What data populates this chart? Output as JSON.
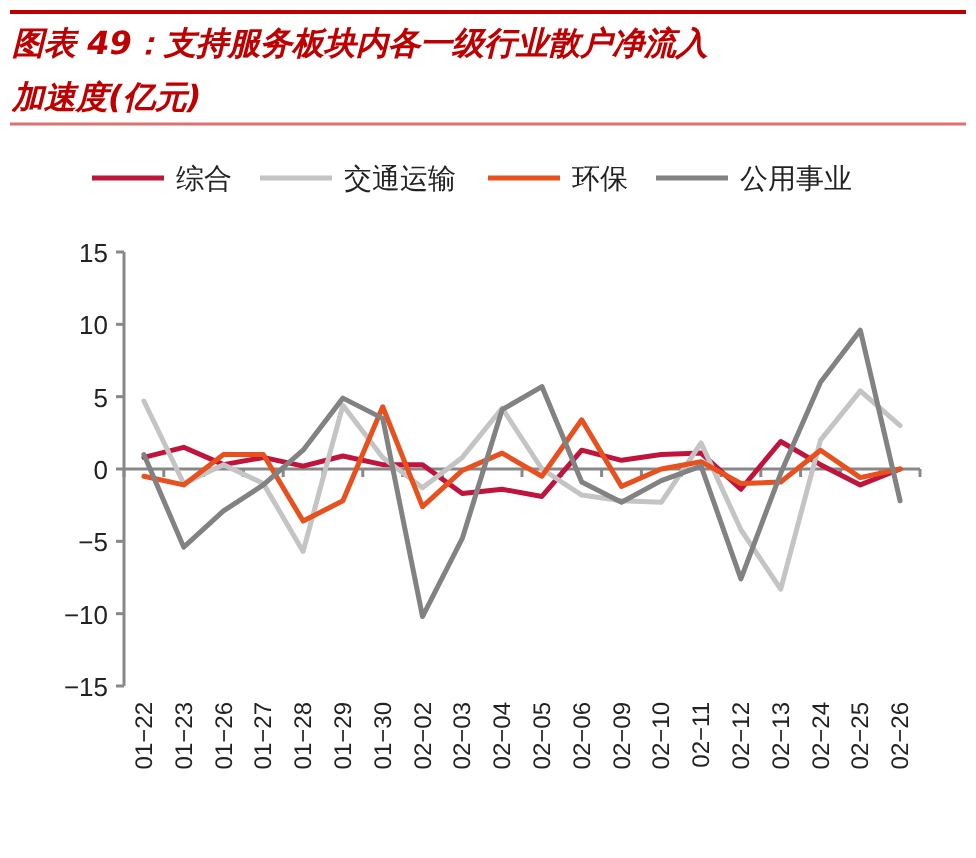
{
  "chart_data": {
    "type": "line",
    "title": "图表 49：支持服务板块内各一级行业散户净流入加速度(亿元)",
    "categories": [
      "01−22",
      "01−23",
      "01−26",
      "01−27",
      "01−28",
      "01−29",
      "01−30",
      "02−02",
      "02−03",
      "02−04",
      "02−05",
      "02−06",
      "02−09",
      "02−10",
      "02−11",
      "02−12",
      "02−13",
      "02−24",
      "02−25",
      "02−26"
    ],
    "ref_lines": [
      {
        "axis": "y",
        "value": 0,
        "color": "#888888"
      }
    ],
    "series": [
      {
        "name": "综合",
        "color": "#c0143c",
        "values": [
          0.8,
          1.5,
          0.3,
          0.8,
          0.2,
          0.9,
          0.3,
          0.3,
          -1.7,
          -1.4,
          -1.9,
          1.3,
          0.6,
          1.0,
          1.1,
          -1.4,
          1.9,
          0.3,
          -1.1,
          0.0
        ]
      },
      {
        "name": "交通运输",
        "color": "#c4c4c4",
        "values": [
          4.7,
          -1.0,
          0.3,
          -1.0,
          -5.7,
          4.4,
          0.8,
          -1.3,
          0.8,
          4.2,
          0.0,
          -1.8,
          -2.2,
          -2.3,
          1.8,
          -4.2,
          -8.3,
          2.0,
          5.4,
          3.0
        ]
      },
      {
        "name": "环保",
        "color": "#e8501e",
        "values": [
          -0.5,
          -1.1,
          1.0,
          1.0,
          -3.6,
          -2.2,
          4.3,
          -2.6,
          -0.1,
          1.1,
          -0.5,
          3.4,
          -1.2,
          0.0,
          0.5,
          -1.0,
          -0.9,
          1.3,
          -0.6,
          0.0
        ]
      },
      {
        "name": "公用事业",
        "color": "#828282",
        "values": [
          1.0,
          -5.4,
          -2.9,
          -1.1,
          1.3,
          4.9,
          3.5,
          -10.2,
          -4.8,
          4.1,
          5.7,
          -0.9,
          -2.3,
          -0.8,
          0.2,
          -7.6,
          -0.3,
          6.0,
          9.6,
          -2.2
        ]
      }
    ],
    "ylim": [
      -15,
      15
    ],
    "yticks": [
      -15,
      -10,
      -5,
      0,
      5,
      10,
      15
    ],
    "grid": false,
    "legend": "top",
    "marker": "none",
    "line_style": "solid"
  }
}
